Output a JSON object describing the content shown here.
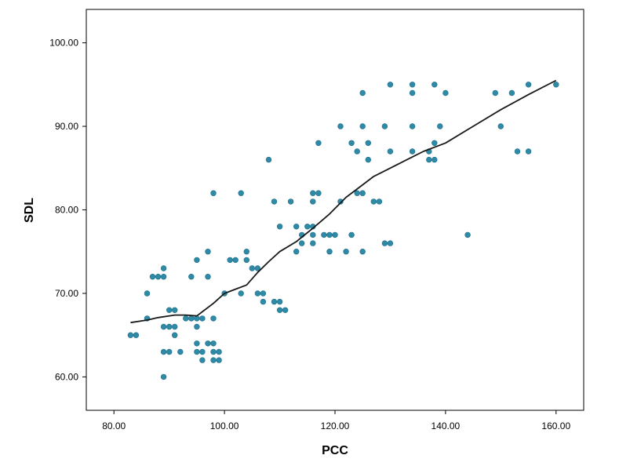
{
  "chart_data": {
    "type": "scatter",
    "title": "",
    "xlabel": "PCC",
    "ylabel": "SDL",
    "xlim": [
      75,
      165
    ],
    "ylim": [
      56,
      104
    ],
    "x_ticks": [
      80,
      100,
      120,
      140,
      160
    ],
    "x_tick_labels": [
      "80.00",
      "100.00",
      "120.00",
      "140.00",
      "160.00"
    ],
    "y_ticks": [
      60,
      70,
      80,
      90,
      100
    ],
    "y_tick_labels": [
      "60.00",
      "70.00",
      "80.00",
      "90.00",
      "100.00"
    ],
    "grid": false,
    "colors": {
      "points": "#2e8aa7",
      "fit_line": "#1a1a1a",
      "frame": "#000000"
    },
    "series": [
      {
        "type": "scatter",
        "points": [
          [
            83,
            65
          ],
          [
            84,
            65
          ],
          [
            86,
            67
          ],
          [
            86,
            70
          ],
          [
            87,
            72
          ],
          [
            88,
            72
          ],
          [
            89,
            72
          ],
          [
            89,
            73
          ],
          [
            89,
            60
          ],
          [
            89,
            63
          ],
          [
            89,
            66
          ],
          [
            90,
            63
          ],
          [
            90,
            66
          ],
          [
            90,
            68
          ],
          [
            91,
            65
          ],
          [
            91,
            66
          ],
          [
            91,
            68
          ],
          [
            92,
            63
          ],
          [
            93,
            67
          ],
          [
            94,
            67
          ],
          [
            94,
            72
          ],
          [
            95,
            66
          ],
          [
            95,
            67
          ],
          [
            95,
            63
          ],
          [
            95,
            64
          ],
          [
            95,
            74
          ],
          [
            96,
            67
          ],
          [
            96,
            62
          ],
          [
            96,
            63
          ],
          [
            97,
            64
          ],
          [
            97,
            72
          ],
          [
            97,
            75
          ],
          [
            98,
            62
          ],
          [
            98,
            63
          ],
          [
            98,
            64
          ],
          [
            98,
            67
          ],
          [
            98,
            82
          ],
          [
            99,
            62
          ],
          [
            99,
            63
          ],
          [
            100,
            70
          ],
          [
            101,
            74
          ],
          [
            102,
            74
          ],
          [
            103,
            70
          ],
          [
            103,
            82
          ],
          [
            104,
            74
          ],
          [
            104,
            75
          ],
          [
            105,
            73
          ],
          [
            106,
            70
          ],
          [
            106,
            73
          ],
          [
            107,
            69
          ],
          [
            107,
            70
          ],
          [
            108,
            86
          ],
          [
            109,
            69
          ],
          [
            109,
            81
          ],
          [
            110,
            69
          ],
          [
            110,
            78
          ],
          [
            110,
            68
          ],
          [
            111,
            68
          ],
          [
            112,
            81
          ],
          [
            113,
            75
          ],
          [
            113,
            78
          ],
          [
            114,
            76
          ],
          [
            114,
            77
          ],
          [
            115,
            78
          ],
          [
            116,
            76
          ],
          [
            116,
            77
          ],
          [
            116,
            78
          ],
          [
            116,
            81
          ],
          [
            116,
            82
          ],
          [
            117,
            82
          ],
          [
            117,
            88
          ],
          [
            118,
            77
          ],
          [
            119,
            75
          ],
          [
            119,
            77
          ],
          [
            120,
            77
          ],
          [
            121,
            81
          ],
          [
            121,
            90
          ],
          [
            122,
            75
          ],
          [
            123,
            77
          ],
          [
            123,
            88
          ],
          [
            124,
            87
          ],
          [
            124,
            82
          ],
          [
            125,
            90
          ],
          [
            125,
            94
          ],
          [
            125,
            82
          ],
          [
            125,
            75
          ],
          [
            126,
            86
          ],
          [
            126,
            88
          ],
          [
            127,
            81
          ],
          [
            128,
            81
          ],
          [
            129,
            76
          ],
          [
            129,
            90
          ],
          [
            130,
            76
          ],
          [
            130,
            87
          ],
          [
            130,
            95
          ],
          [
            134,
            87
          ],
          [
            134,
            90
          ],
          [
            134,
            94
          ],
          [
            134,
            95
          ],
          [
            137,
            86
          ],
          [
            137,
            87
          ],
          [
            138,
            86
          ],
          [
            138,
            88
          ],
          [
            138,
            95
          ],
          [
            139,
            90
          ],
          [
            140,
            94
          ],
          [
            144,
            77
          ],
          [
            149,
            94
          ],
          [
            150,
            90
          ],
          [
            152,
            94
          ],
          [
            153,
            87
          ],
          [
            155,
            87
          ],
          [
            155,
            95
          ],
          [
            160,
            95
          ]
        ]
      },
      {
        "type": "line",
        "points": [
          [
            83,
            66.5
          ],
          [
            86,
            66.8
          ],
          [
            88,
            67.1
          ],
          [
            91,
            67.4
          ],
          [
            93,
            67.4
          ],
          [
            95,
            67.3
          ],
          [
            96,
            67.8
          ],
          [
            98,
            68.8
          ],
          [
            100,
            70.0
          ],
          [
            102,
            70.5
          ],
          [
            104,
            71.0
          ],
          [
            106,
            72.5
          ],
          [
            108,
            73.8
          ],
          [
            110,
            75.0
          ],
          [
            113,
            76.2
          ],
          [
            116,
            77.8
          ],
          [
            119,
            79.5
          ],
          [
            122,
            81.5
          ],
          [
            125,
            83.0
          ],
          [
            127,
            84.0
          ],
          [
            130,
            85.0
          ],
          [
            133,
            86.0
          ],
          [
            136,
            87.0
          ],
          [
            140,
            88.0
          ],
          [
            145,
            90.0
          ],
          [
            150,
            92.0
          ],
          [
            155,
            93.8
          ],
          [
            160,
            95.5
          ]
        ]
      }
    ]
  }
}
